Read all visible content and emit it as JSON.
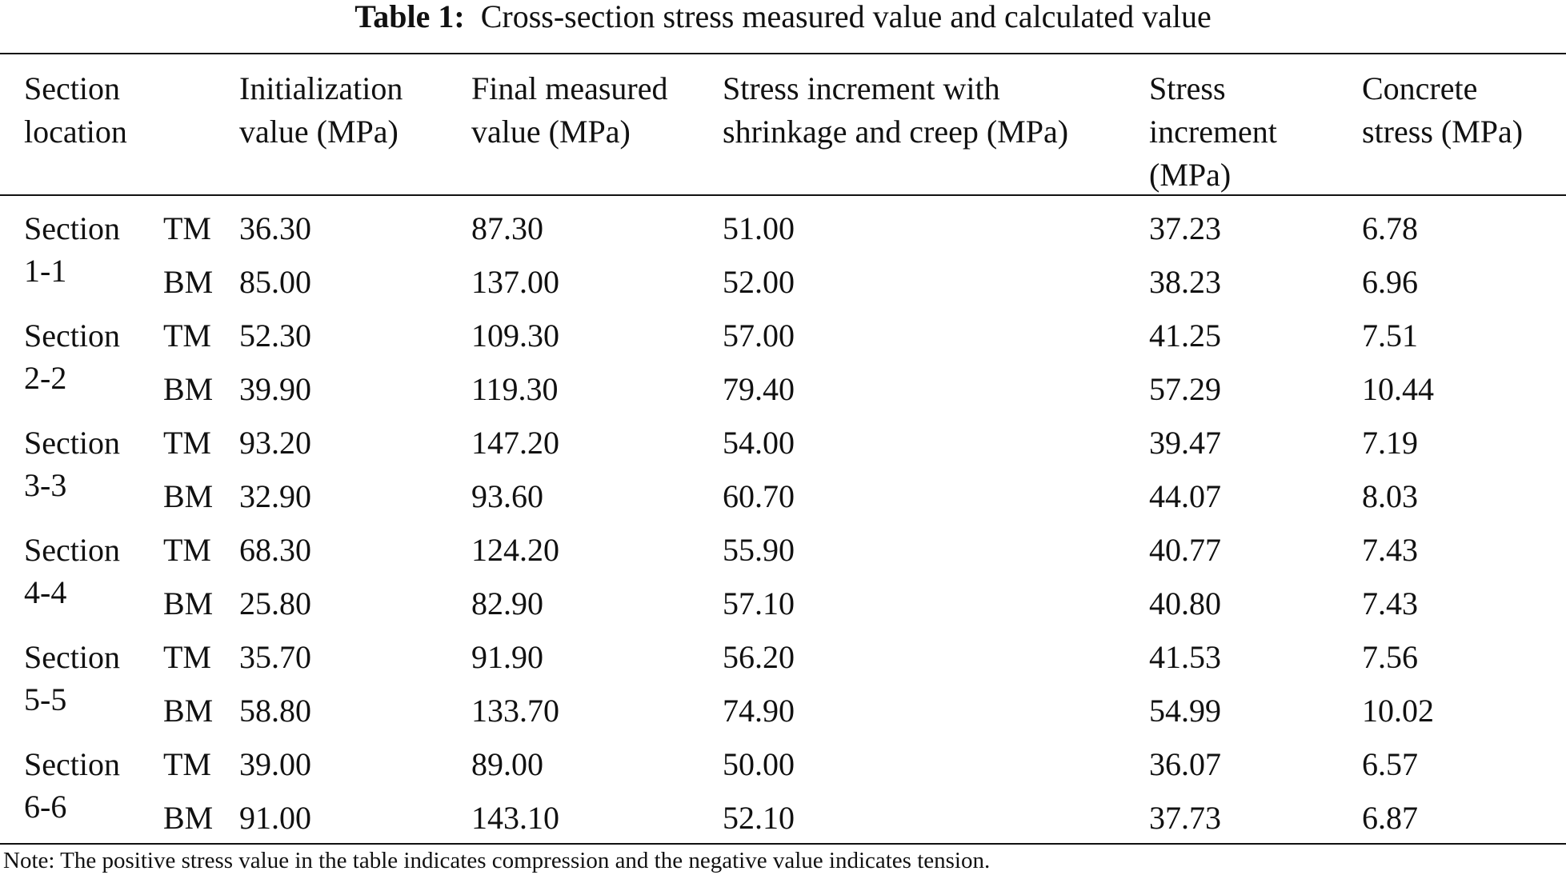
{
  "caption": {
    "label": "Table 1:",
    "text": "Cross-section stress measured value and calculated value"
  },
  "header": {
    "section_line1": "Section",
    "section_line2": "location",
    "col_init_line1": "Initialization",
    "col_init_line2": "value (MPa)",
    "col_final_line1": "Final measured",
    "col_final_line2": "value (MPa)",
    "col_shrink_line1": "Stress increment with",
    "col_shrink_line2": "shrinkage and creep (MPa)",
    "col_inc_line1": "Stress",
    "col_inc_line2": "increment",
    "col_inc_line3": "(MPa)",
    "col_conc_line1": "Concrete",
    "col_conc_line2": "stress (MPa)"
  },
  "sections": [
    {
      "name_line1": "Section",
      "name_line2": "1-1",
      "rows": [
        {
          "pos": "TM",
          "init": "36.30",
          "final": "87.30",
          "shrink": "51.00",
          "inc": "37.23",
          "conc": "6.78"
        },
        {
          "pos": "BM",
          "init": "85.00",
          "final": "137.00",
          "shrink": "52.00",
          "inc": "38.23",
          "conc": "6.96"
        }
      ]
    },
    {
      "name_line1": "Section",
      "name_line2": "2-2",
      "rows": [
        {
          "pos": "TM",
          "init": "52.30",
          "final": "109.30",
          "shrink": "57.00",
          "inc": "41.25",
          "conc": "7.51"
        },
        {
          "pos": "BM",
          "init": "39.90",
          "final": "119.30",
          "shrink": "79.40",
          "inc": "57.29",
          "conc": "10.44"
        }
      ]
    },
    {
      "name_line1": "Section",
      "name_line2": "3-3",
      "rows": [
        {
          "pos": "TM",
          "init": "93.20",
          "final": "147.20",
          "shrink": "54.00",
          "inc": "39.47",
          "conc": "7.19"
        },
        {
          "pos": "BM",
          "init": "32.90",
          "final": "93.60",
          "shrink": "60.70",
          "inc": "44.07",
          "conc": "8.03"
        }
      ]
    },
    {
      "name_line1": "Section",
      "name_line2": "4-4",
      "rows": [
        {
          "pos": "TM",
          "init": "68.30",
          "final": "124.20",
          "shrink": "55.90",
          "inc": "40.77",
          "conc": "7.43"
        },
        {
          "pos": "BM",
          "init": "25.80",
          "final": "82.90",
          "shrink": "57.10",
          "inc": "40.80",
          "conc": "7.43"
        }
      ]
    },
    {
      "name_line1": "Section",
      "name_line2": "5-5",
      "rows": [
        {
          "pos": "TM",
          "init": "35.70",
          "final": "91.90",
          "shrink": "56.20",
          "inc": "41.53",
          "conc": "7.56"
        },
        {
          "pos": "BM",
          "init": "58.80",
          "final": "133.70",
          "shrink": "74.90",
          "inc": "54.99",
          "conc": "10.02"
        }
      ]
    },
    {
      "name_line1": "Section",
      "name_line2": "6-6",
      "rows": [
        {
          "pos": "TM",
          "init": "39.00",
          "final": "89.00",
          "shrink": "50.00",
          "inc": "36.07",
          "conc": "6.57"
        },
        {
          "pos": "BM",
          "init": "91.00",
          "final": "143.10",
          "shrink": "52.10",
          "inc": "37.73",
          "conc": "6.87"
        }
      ]
    }
  ],
  "note": "Note: The positive stress value in the table indicates compression and the negative value indicates tension."
}
